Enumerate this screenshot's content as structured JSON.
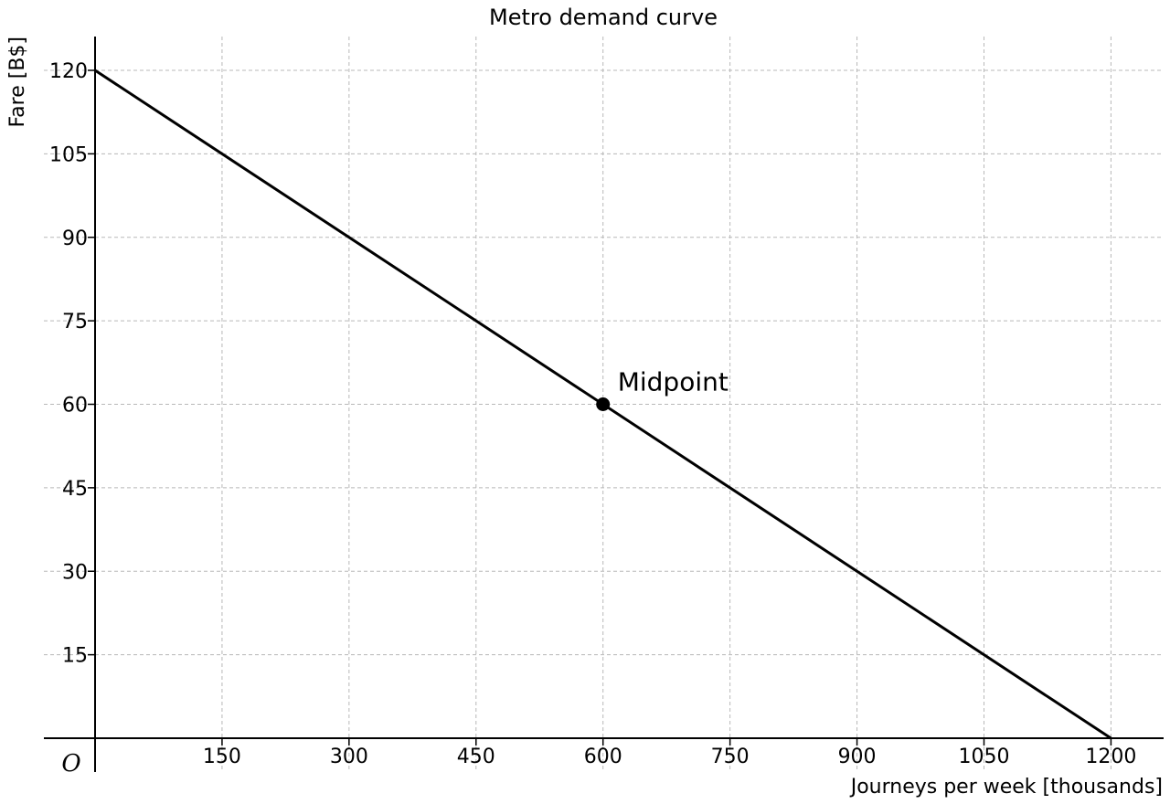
{
  "chart_data": {
    "type": "line",
    "title": "Metro demand curve",
    "xlabel": "Journeys per week [thousands]",
    "ylabel": "Fare [B$]",
    "origin_label": "O",
    "xlim": [
      0,
      1260
    ],
    "ylim": [
      -5,
      125
    ],
    "x_ticks": [
      150,
      300,
      450,
      600,
      750,
      900,
      1050,
      1200
    ],
    "y_ticks": [
      15,
      30,
      45,
      60,
      75,
      90,
      105,
      120
    ],
    "grid": true,
    "series": [
      {
        "x": [
          0,
          1200
        ],
        "y": [
          120,
          0
        ],
        "color": "#000000"
      }
    ],
    "annotations": [
      {
        "x": 600,
        "y": 60,
        "text": "Midpoint",
        "marker": "dot"
      }
    ]
  }
}
